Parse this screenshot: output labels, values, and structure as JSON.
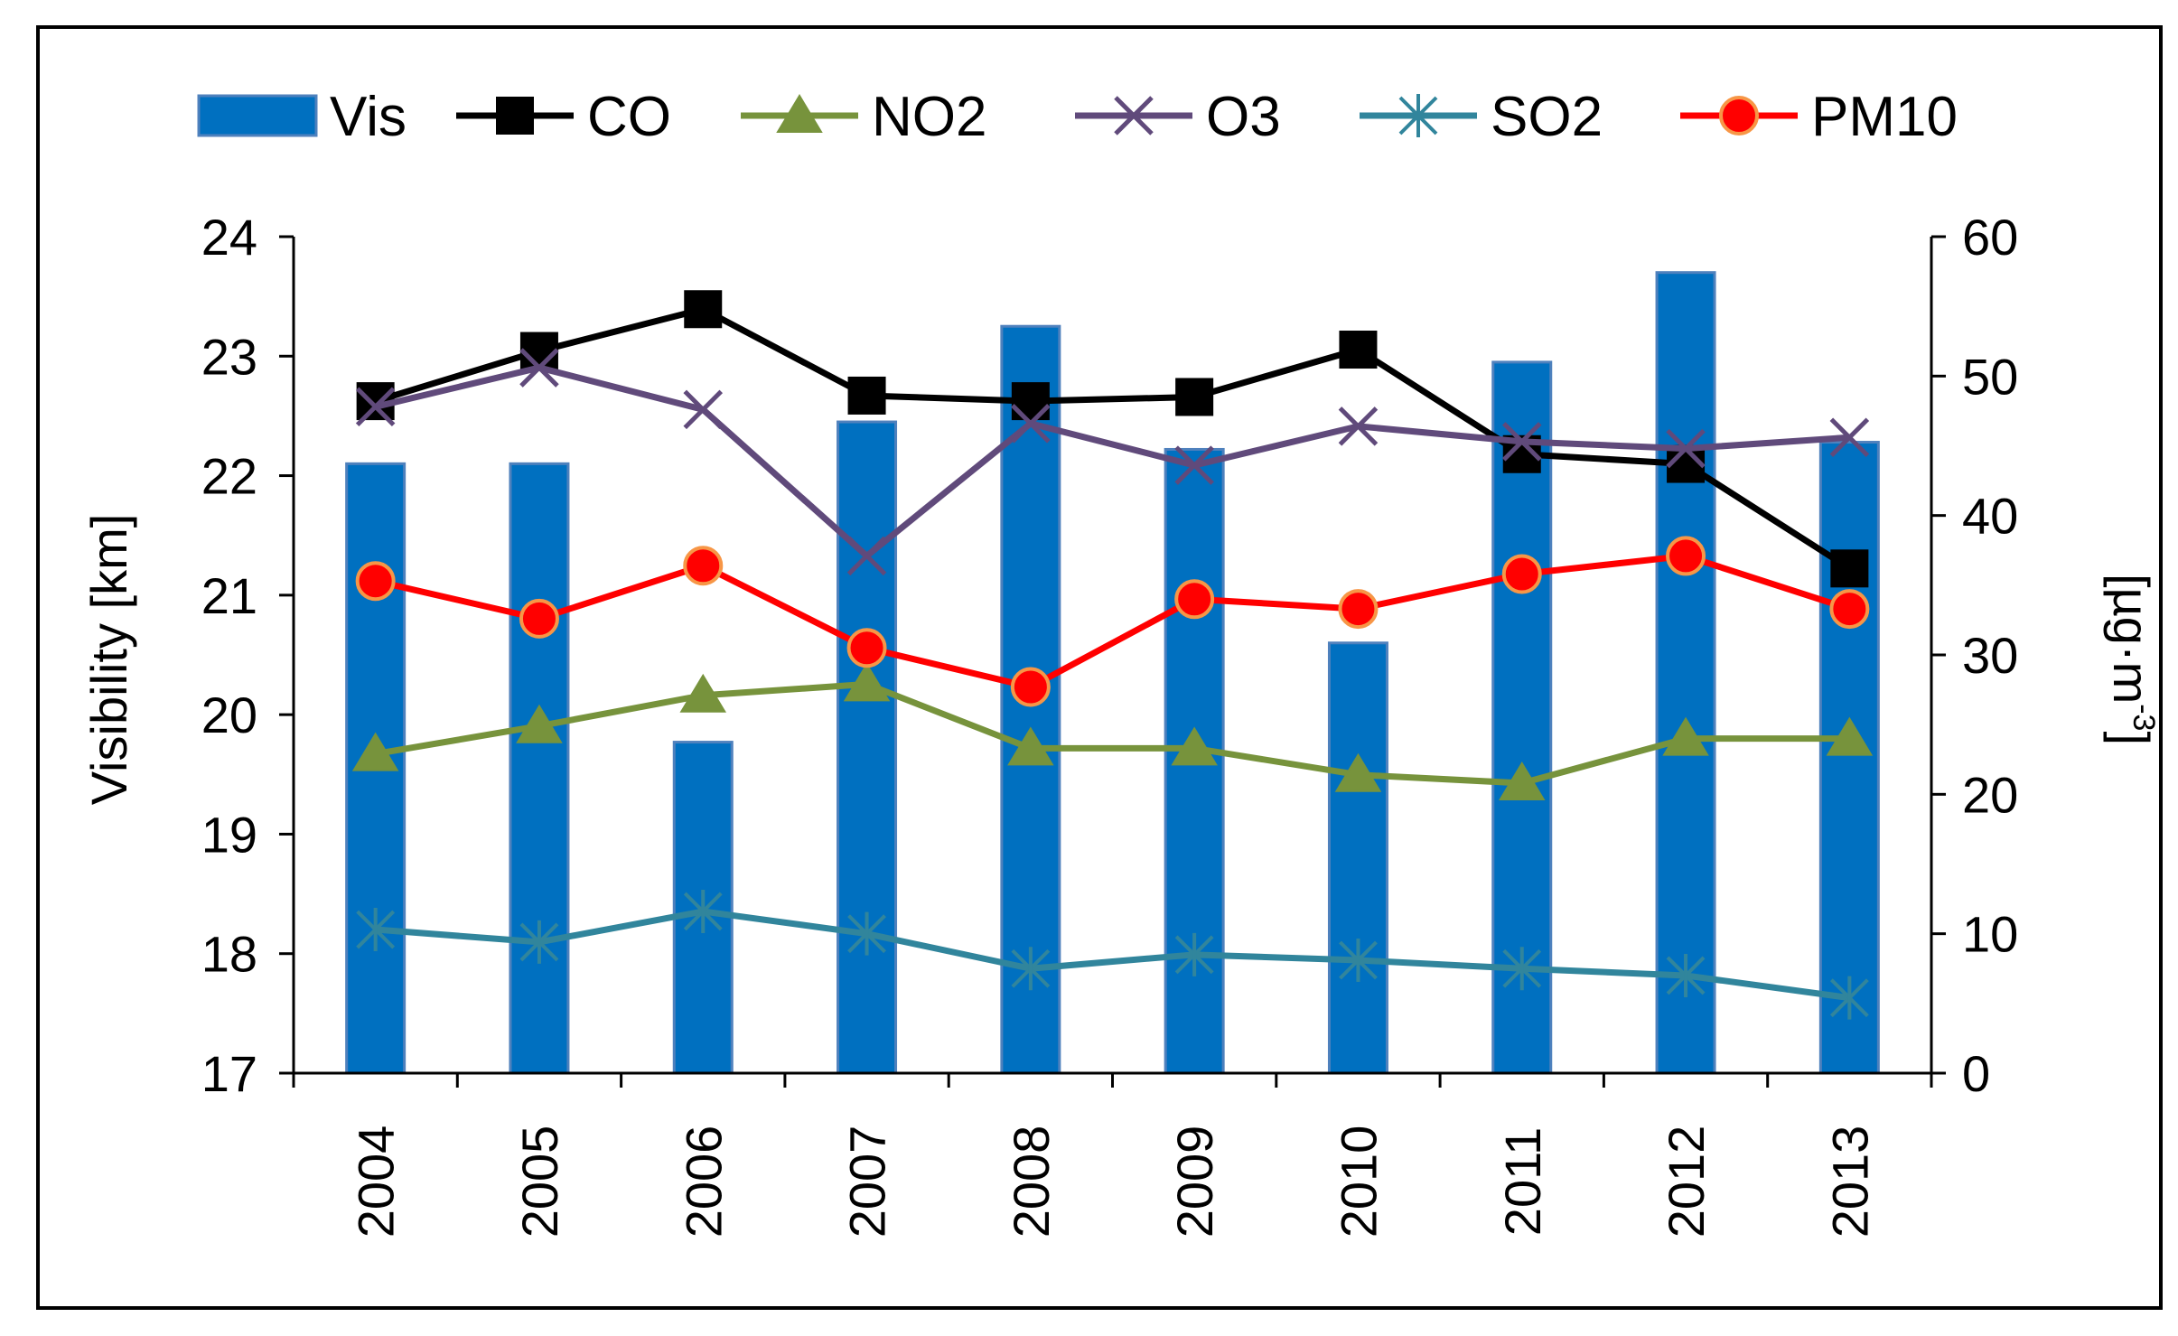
{
  "chart_data": {
    "type": "bar+line",
    "title": "",
    "categories": [
      "2004",
      "2005",
      "2006",
      "2007",
      "2008",
      "2009",
      "2010",
      "2011",
      "2012",
      "2013"
    ],
    "ylabel_left": "Visibility [km]",
    "ylabel_right": "[µg·m",
    "ylabel_right_sup": "-3",
    "ylim_left": [
      17,
      24
    ],
    "yticks_left": [
      17,
      18,
      19,
      20,
      21,
      22,
      23,
      24
    ],
    "ylim_right": [
      0,
      60
    ],
    "yticks_right": [
      0,
      10,
      20,
      30,
      40,
      50,
      60
    ],
    "legend_position": "top",
    "bar_series": {
      "name": "Vis",
      "axis": "left",
      "color": "#0070C0",
      "values": [
        22.1,
        22.1,
        19.77,
        22.45,
        23.25,
        22.22,
        20.6,
        22.95,
        23.7,
        22.28
      ]
    },
    "line_series": [
      {
        "name": "CO",
        "axis": "right",
        "color": "#000000",
        "marker": "square",
        "values": [
          48.2,
          51.8,
          54.8,
          48.6,
          48.2,
          48.5,
          51.9,
          44.4,
          43.7,
          36.2
        ]
      },
      {
        "name": "NO2",
        "axis": "right",
        "color": "#77933C",
        "marker": "triangle",
        "values": [
          22.9,
          24.9,
          27.1,
          27.9,
          23.3,
          23.3,
          21.4,
          20.8,
          24.0,
          24.0
        ]
      },
      {
        "name": "O3",
        "axis": "right",
        "color": "#604A7B",
        "marker": "x",
        "values": [
          47.8,
          50.6,
          47.6,
          37.1,
          46.6,
          43.6,
          46.4,
          45.3,
          44.8,
          45.6
        ]
      },
      {
        "name": "SO2",
        "axis": "right",
        "color": "#31859C",
        "marker": "asterisk",
        "values": [
          10.3,
          9.4,
          11.6,
          10.0,
          7.5,
          8.5,
          8.1,
          7.5,
          7.0,
          5.4
        ]
      },
      {
        "name": "PM10",
        "axis": "right",
        "color": "#FF0000",
        "marker": "circle",
        "values": [
          35.3,
          32.6,
          36.4,
          30.5,
          27.7,
          34.0,
          33.3,
          35.8,
          37.1,
          33.3
        ]
      }
    ]
  }
}
